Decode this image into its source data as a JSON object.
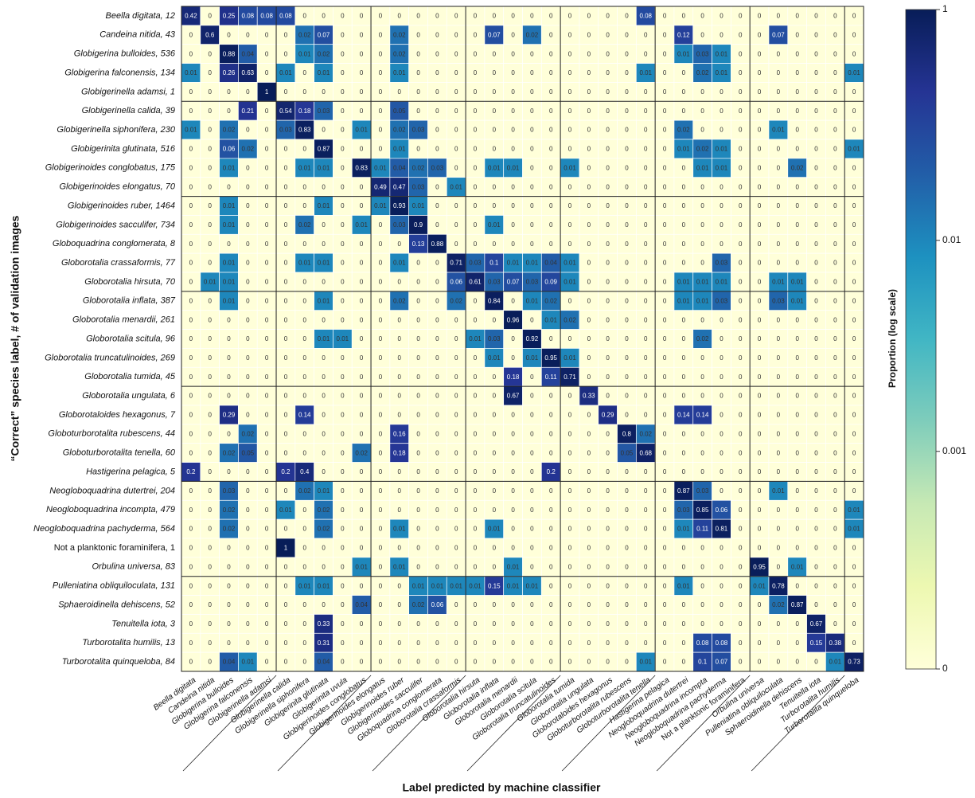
{
  "chart_data": {
    "type": "heatmap",
    "x_label": "Label predicted by machine classifier",
    "y_label": "“Correct” species label, # of validation images",
    "colorbar_label": "Proportion (log scale)",
    "log_scale": true,
    "zlim": [
      0,
      1
    ],
    "zticks": [
      0,
      0.001,
      0.01,
      1
    ],
    "rows": [
      "Beella digitata, 12",
      "Candeina nitida, 43",
      "Globigerina bulloides, 536",
      "Globigerina falconensis, 134",
      "Globigerinella adamsi, 1",
      "Globigerinella calida, 39",
      "Globigerinella siphonifera, 230",
      "Globigerinita glutinata, 516",
      "Globigerinoides conglobatus, 175",
      "Globigerinoides elongatus, 70",
      "Globigerinoides ruber, 1464",
      "Globigerinoides sacculifer, 734",
      "Globoquadrina conglomerata, 8",
      "Globorotalia crassaformis, 77",
      "Globorotalia hirsuta, 70",
      "Globorotalia inflata, 387",
      "Globorotalia menardii, 261",
      "Globorotalia scitula, 96",
      "Globorotalia truncatulinoides, 269",
      "Globorotalia tumida, 45",
      "Globorotalia ungulata, 6",
      "Globorotaloides hexagonus, 7",
      "Globoturborotalita rubescens, 44",
      "Globoturborotalita tenella, 60",
      "Hastigerina pelagica, 5",
      "Neogloboquadrina dutertrei, 204",
      "Neogloboquadrina incompta, 479",
      "Neogloboquadrina pachyderma, 564",
      "Not a planktonic foraminifera, 1",
      "Orbulina universa, 83",
      "Pulleniatina obliquiloculata, 131",
      "Sphaeroidinella dehiscens, 52",
      "Tenuitella iota, 3",
      "Turborotalita humilis, 13",
      "Turborotalita quinqueloba, 84"
    ],
    "columns": [
      "Beella digitata",
      "Candeina nitida",
      "Globigerina bulloides",
      "Globigerina falconensis",
      "Globigerinella adamsi",
      "Globigerinella calida",
      "Globigerinella siphonifera",
      "Globigerinita glutinata",
      "Globigerinita uvula",
      "Globigerinoides conglobatus",
      "Globigerinoides elongatus",
      "Globigerinoides ruber",
      "Globigerinoides sacculifer",
      "Globoquadrina conglomerata",
      "Globorotalia crassaformis",
      "Globorotalia hirsuta",
      "Globorotalia inflata",
      "Globorotalia menardii",
      "Globorotalia scitula",
      "Globorotalia truncatulinoides",
      "Globorotalia tumida",
      "Globorotalia ungulata",
      "Globorotaloides hexagonus",
      "Globoturborotalita rubescens",
      "Globoturborotalita tenella",
      "Hastigerina pelagica",
      "Neogloboquadrina dutertrei",
      "Neogloboquadrina incompta",
      "Neogloboquadrina pachyderma",
      "Not a planktonic foraminifera",
      "Orbulina universa",
      "Pulleniatina obliquiloculata",
      "Sphaeroidinella dehiscens",
      "Tenuitella iota",
      "Turborotalita humilis",
      "Turborotalita quinqueloba"
    ],
    "values": [
      [
        0.42,
        0,
        0.25,
        0.08,
        0.08,
        0.08,
        0,
        0,
        0,
        0,
        0,
        0,
        0,
        0,
        0,
        0,
        0,
        0,
        0,
        0,
        0,
        0,
        0,
        0,
        0.08,
        0,
        0,
        0,
        0,
        0,
        0,
        0,
        0,
        0,
        0,
        0
      ],
      [
        0,
        0.6,
        0,
        0,
        0,
        0,
        0.02,
        0.07,
        0,
        0,
        0,
        0.02,
        0,
        0,
        0,
        0,
        0.07,
        0,
        0.02,
        0,
        0,
        0,
        0,
        0,
        0,
        0,
        0.12,
        0,
        0,
        0,
        0,
        0.07,
        0,
        0,
        0,
        0
      ],
      [
        0,
        0,
        0.88,
        0.04,
        0,
        0,
        0.01,
        0.02,
        0,
        0,
        0,
        0.02,
        0,
        0,
        0,
        0,
        0,
        0,
        0,
        0,
        0,
        0,
        0,
        0,
        0,
        0,
        0.01,
        0.03,
        0.01,
        0,
        0,
        0,
        0,
        0,
        0,
        0
      ],
      [
        0.01,
        0,
        0.26,
        0.63,
        0,
        0.01,
        0,
        0.01,
        0,
        0,
        0,
        0.01,
        0,
        0,
        0,
        0,
        0,
        0,
        0,
        0,
        0,
        0,
        0,
        0,
        0.01,
        0,
        0,
        0.02,
        0.01,
        0,
        0,
        0,
        0,
        0,
        0,
        0.01
      ],
      [
        0,
        0,
        0,
        0,
        1,
        0,
        0,
        0,
        0,
        0,
        0,
        0,
        0,
        0,
        0,
        0,
        0,
        0,
        0,
        0,
        0,
        0,
        0,
        0,
        0,
        0,
        0,
        0,
        0,
        0,
        0,
        0,
        0,
        0,
        0,
        0
      ],
      [
        0,
        0,
        0,
        0.21,
        0,
        0.54,
        0.18,
        0.03,
        0,
        0,
        0,
        0.05,
        0,
        0,
        0,
        0,
        0,
        0,
        0,
        0,
        0,
        0,
        0,
        0,
        0,
        0,
        0,
        0,
        0,
        0,
        0,
        0,
        0,
        0,
        0,
        0
      ],
      [
        0.01,
        0,
        0.02,
        0,
        0,
        0.03,
        0.83,
        0,
        0,
        0.01,
        0,
        0.02,
        0.03,
        0,
        0,
        0,
        0,
        0,
        0,
        0,
        0,
        0,
        0,
        0,
        0,
        0,
        0.02,
        0,
        0,
        0,
        0,
        0.01,
        0,
        0,
        0,
        0
      ],
      [
        0,
        0,
        0.06,
        0.02,
        0,
        0,
        0,
        0.87,
        0,
        0,
        0,
        0.01,
        0,
        0,
        0,
        0,
        0,
        0,
        0,
        0,
        0,
        0,
        0,
        0,
        0,
        0,
        0.01,
        0.02,
        0.01,
        0,
        0,
        0,
        0,
        0,
        0,
        0.01
      ],
      [
        0,
        0,
        0.01,
        0,
        0,
        0,
        0.01,
        0.01,
        0,
        0.83,
        0.01,
        0.04,
        0.02,
        0.03,
        0,
        0,
        0.01,
        0.01,
        0,
        0,
        0.01,
        0,
        0,
        0,
        0,
        0,
        0,
        0.01,
        0.01,
        0,
        0,
        0,
        0.02,
        0,
        0,
        0
      ],
      [
        0,
        0,
        0,
        0,
        0,
        0,
        0,
        0,
        0,
        0,
        0.49,
        0.47,
        0.03,
        0,
        0.01,
        0,
        0,
        0,
        0,
        0,
        0,
        0,
        0,
        0,
        0,
        0,
        0,
        0,
        0,
        0,
        0,
        0,
        0,
        0,
        0,
        0
      ],
      [
        0,
        0,
        0.01,
        0,
        0,
        0,
        0,
        0.01,
        0,
        0,
        0.01,
        0.93,
        0.01,
        0,
        0,
        0,
        0,
        0,
        0,
        0,
        0,
        0,
        0,
        0,
        0,
        0,
        0,
        0,
        0,
        0,
        0,
        0,
        0,
        0,
        0,
        0
      ],
      [
        0,
        0,
        0.01,
        0,
        0,
        0,
        0.02,
        0,
        0,
        0.01,
        0,
        0.03,
        0.9,
        0,
        0,
        0,
        0.01,
        0,
        0,
        0,
        0,
        0,
        0,
        0,
        0,
        0,
        0,
        0,
        0,
        0,
        0,
        0,
        0,
        0,
        0,
        0
      ],
      [
        0,
        0,
        0,
        0,
        0,
        0,
        0,
        0,
        0,
        0,
        0,
        0,
        0.13,
        0.88,
        0,
        0,
        0,
        0,
        0,
        0,
        0,
        0,
        0,
        0,
        0,
        0,
        0,
        0,
        0,
        0,
        0,
        0,
        0,
        0,
        0,
        0
      ],
      [
        0,
        0,
        0.01,
        0,
        0,
        0,
        0.01,
        0.01,
        0,
        0,
        0,
        0.01,
        0,
        0,
        0.71,
        0.03,
        0.1,
        0.01,
        0.01,
        0.04,
        0.01,
        0,
        0,
        0,
        0,
        0,
        0,
        0,
        0.03,
        0,
        0,
        0,
        0,
        0,
        0,
        0
      ],
      [
        0,
        0.01,
        0.01,
        0,
        0,
        0,
        0,
        0,
        0,
        0,
        0,
        0,
        0,
        0,
        0.06,
        0.61,
        0.03,
        0.07,
        0.03,
        0.09,
        0.01,
        0,
        0,
        0,
        0,
        0,
        0.01,
        0.01,
        0.01,
        0,
        0,
        0.01,
        0.01,
        0,
        0,
        0
      ],
      [
        0,
        0,
        0.01,
        0,
        0,
        0,
        0,
        0.01,
        0,
        0,
        0,
        0.02,
        0,
        0,
        0.02,
        0,
        0.84,
        0,
        0.01,
        0.02,
        0,
        0,
        0,
        0,
        0,
        0,
        0.01,
        0.01,
        0.03,
        0,
        0,
        0.03,
        0.01,
        0,
        0,
        0
      ],
      [
        0,
        0,
        0,
        0,
        0,
        0,
        0,
        0,
        0,
        0,
        0,
        0,
        0,
        0,
        0,
        0,
        0,
        0.96,
        0,
        0.01,
        0.02,
        0,
        0,
        0,
        0,
        0,
        0,
        0,
        0,
        0,
        0,
        0,
        0,
        0,
        0,
        0
      ],
      [
        0,
        0,
        0,
        0,
        0,
        0,
        0,
        0.01,
        0.01,
        0,
        0,
        0,
        0,
        0,
        0,
        0.01,
        0.03,
        0,
        0.92,
        0,
        0,
        0,
        0,
        0,
        0,
        0,
        0,
        0.02,
        0,
        0,
        0,
        0,
        0,
        0,
        0,
        0
      ],
      [
        0,
        0,
        0,
        0,
        0,
        0,
        0,
        0,
        0,
        0,
        0,
        0,
        0,
        0,
        0,
        0,
        0.01,
        0,
        0.01,
        0.95,
        0.01,
        0,
        0,
        0,
        0,
        0,
        0,
        0,
        0,
        0,
        0,
        0,
        0,
        0,
        0,
        0
      ],
      [
        0,
        0,
        0,
        0,
        0,
        0,
        0,
        0,
        0,
        0,
        0,
        0,
        0,
        0,
        0,
        0,
        0,
        0.18,
        0,
        0.11,
        0.71,
        0,
        0,
        0,
        0,
        0,
        0,
        0,
        0,
        0,
        0,
        0,
        0,
        0,
        0,
        0
      ],
      [
        0,
        0,
        0,
        0,
        0,
        0,
        0,
        0,
        0,
        0,
        0,
        0,
        0,
        0,
        0,
        0,
        0,
        0.67,
        0,
        0,
        0,
        0.33,
        0,
        0,
        0,
        0,
        0,
        0,
        0,
        0,
        0,
        0,
        0,
        0,
        0,
        0
      ],
      [
        0,
        0,
        0.29,
        0,
        0,
        0,
        0.14,
        0,
        0,
        0,
        0,
        0,
        0,
        0,
        0,
        0,
        0,
        0,
        0,
        0,
        0,
        0,
        0.29,
        0,
        0,
        0,
        0.14,
        0.14,
        0,
        0,
        0,
        0,
        0,
        0,
        0,
        0
      ],
      [
        0,
        0,
        0,
        0.02,
        0,
        0,
        0,
        0,
        0,
        0,
        0,
        0.16,
        0,
        0,
        0,
        0,
        0,
        0,
        0,
        0,
        0,
        0,
        0,
        0.8,
        0.02,
        0,
        0,
        0,
        0,
        0,
        0,
        0,
        0,
        0,
        0,
        0
      ],
      [
        0,
        0,
        0.02,
        0.05,
        0,
        0,
        0,
        0,
        0,
        0.02,
        0,
        0.18,
        0,
        0,
        0,
        0,
        0,
        0,
        0,
        0,
        0,
        0,
        0,
        0.05,
        0.68,
        0,
        0,
        0,
        0,
        0,
        0,
        0,
        0,
        0,
        0,
        0
      ],
      [
        0.2,
        0,
        0,
        0,
        0,
        0.2,
        0.4,
        0,
        0,
        0,
        0,
        0,
        0,
        0,
        0,
        0,
        0,
        0,
        0,
        0.2,
        0,
        0,
        0,
        0,
        0,
        0,
        0,
        0,
        0,
        0,
        0,
        0,
        0,
        0,
        0,
        0
      ],
      [
        0,
        0,
        0.03,
        0,
        0,
        0,
        0.02,
        0.01,
        0,
        0,
        0,
        0,
        0,
        0,
        0,
        0,
        0,
        0,
        0,
        0,
        0,
        0,
        0,
        0,
        0,
        0,
        0.87,
        0.03,
        0,
        0,
        0,
        0.01,
        0,
        0,
        0,
        0
      ],
      [
        0,
        0,
        0.02,
        0,
        0,
        0.01,
        0,
        0.02,
        0,
        0,
        0,
        0,
        0,
        0,
        0,
        0,
        0,
        0,
        0,
        0,
        0,
        0,
        0,
        0,
        0,
        0,
        0.03,
        0.85,
        0.06,
        0,
        0,
        0,
        0,
        0,
        0,
        0.01
      ],
      [
        0,
        0,
        0.02,
        0,
        0,
        0,
        0,
        0.02,
        0,
        0,
        0,
        0.01,
        0,
        0,
        0,
        0,
        0.01,
        0,
        0,
        0,
        0,
        0,
        0,
        0,
        0,
        0,
        0.01,
        0.11,
        0.81,
        0,
        0,
        0,
        0,
        0,
        0,
        0.01
      ],
      [
        0,
        0,
        0,
        0,
        0,
        1,
        0,
        0,
        0,
        0,
        0,
        0,
        0,
        0,
        0,
        0,
        0,
        0,
        0,
        0,
        0,
        0,
        0,
        0,
        0,
        0,
        0,
        0,
        0,
        0,
        0,
        0,
        0,
        0,
        0,
        0
      ],
      [
        0,
        0,
        0,
        0,
        0,
        0,
        0,
        0,
        0,
        0.01,
        0,
        0.01,
        0,
        0,
        0,
        0,
        0,
        0.01,
        0,
        0,
        0,
        0,
        0,
        0,
        0,
        0,
        0,
        0,
        0,
        0,
        0.95,
        0,
        0.01,
        0,
        0,
        0
      ],
      [
        0,
        0,
        0,
        0,
        0,
        0,
        0.01,
        0.01,
        0,
        0,
        0,
        0,
        0.01,
        0.01,
        0.01,
        0.01,
        0.15,
        0.01,
        0.01,
        0,
        0,
        0,
        0,
        0,
        0,
        0,
        0.01,
        0,
        0,
        0,
        0.01,
        0.78,
        0,
        0,
        0,
        0
      ],
      [
        0,
        0,
        0,
        0,
        0,
        0,
        0,
        0,
        0,
        0.04,
        0,
        0,
        0.02,
        0.06,
        0,
        0,
        0,
        0,
        0,
        0,
        0,
        0,
        0,
        0,
        0,
        0,
        0,
        0,
        0,
        0,
        0,
        0.02,
        0.87,
        0,
        0,
        0
      ],
      [
        0,
        0,
        0,
        0,
        0,
        0,
        0,
        0.33,
        0,
        0,
        0,
        0,
        0,
        0,
        0,
        0,
        0,
        0,
        0,
        0,
        0,
        0,
        0,
        0,
        0,
        0,
        0,
        0,
        0,
        0,
        0,
        0,
        0,
        0.67,
        0,
        0
      ],
      [
        0,
        0,
        0,
        0,
        0,
        0,
        0,
        0.31,
        0,
        0,
        0,
        0,
        0,
        0,
        0,
        0,
        0,
        0,
        0,
        0,
        0,
        0,
        0,
        0,
        0,
        0,
        0,
        0.08,
        0.08,
        0,
        0,
        0,
        0,
        0.15,
        0.38,
        0
      ],
      [
        0,
        0,
        0.04,
        0.01,
        0,
        0,
        0,
        0.04,
        0,
        0,
        0,
        0,
        0,
        0,
        0,
        0,
        0,
        0,
        0,
        0,
        0,
        0,
        0,
        0,
        0.01,
        0,
        0,
        0.1,
        0.07,
        0,
        0,
        0,
        0,
        0,
        0.01,
        0.73
      ]
    ]
  }
}
